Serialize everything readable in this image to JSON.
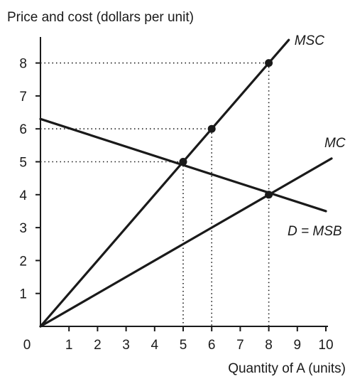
{
  "chart_data": {
    "type": "line",
    "ylabel": "Price and cost (dollars per unit)",
    "xlabel": "Quantity of A (units)",
    "origin_label": "0",
    "xlim": [
      0,
      11
    ],
    "ylim": [
      0,
      9
    ],
    "x_ticks": [
      1,
      2,
      3,
      4,
      5,
      6,
      7,
      8,
      9,
      10
    ],
    "y_ticks": [
      1,
      2,
      3,
      4,
      5,
      6,
      7,
      8
    ],
    "grid": false,
    "series": [
      {
        "name": "MSC",
        "x": [
          0,
          8.7
        ],
        "y": [
          0,
          8.7
        ]
      },
      {
        "name": "MC",
        "x": [
          0,
          10.2
        ],
        "y": [
          0,
          5.1
        ]
      },
      {
        "name": "D = MSB",
        "x": [
          0,
          10
        ],
        "y": [
          6.3,
          3.5
        ]
      }
    ],
    "points": [
      {
        "x": 5,
        "y": 5
      },
      {
        "x": 6,
        "y": 6
      },
      {
        "x": 8,
        "y": 8
      },
      {
        "x": 8,
        "y": 4
      }
    ],
    "guides": [
      {
        "x": 5,
        "y": 5
      },
      {
        "x": 6,
        "y": 6
      },
      {
        "x": 8,
        "y": 8
      }
    ]
  }
}
